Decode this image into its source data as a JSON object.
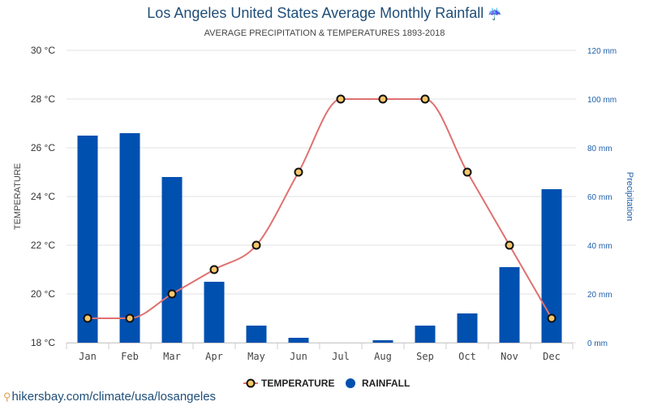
{
  "header": {
    "title": "Los Angeles United States Average Monthly Rainfall",
    "title_icon": "umbrella-rain-icon",
    "title_icon_glyph": "☔",
    "subtitle": "AVERAGE PRECIPITATION & TEMPERATURES 1893-2018"
  },
  "source": {
    "icon": "location-pin-icon",
    "text": "hikersbay.com/climate/usa/losangeles"
  },
  "colors": {
    "bar": "#0050b0",
    "line": "#e07070",
    "marker_fill": "#f5c76a",
    "marker_stroke": "#111111",
    "grid": "#e2e2e2",
    "right_axis": "#1f5fa8"
  },
  "chart_data": {
    "type": "bar+line",
    "title": "Los Angeles United States Average Monthly Rainfall",
    "subtitle": "AVERAGE PRECIPITATION & TEMPERATURES 1893-2018",
    "categories": [
      "Jan",
      "Feb",
      "Mar",
      "Apr",
      "May",
      "Jun",
      "Jul",
      "Aug",
      "Sep",
      "Oct",
      "Nov",
      "Dec"
    ],
    "series": [
      {
        "name": "RAINFALL",
        "type": "bar",
        "axis": "right",
        "unit": "mm",
        "values": [
          85,
          86,
          68,
          25,
          7,
          2,
          0,
          1,
          7,
          12,
          31,
          63
        ]
      },
      {
        "name": "TEMPERATURE",
        "type": "line",
        "axis": "left",
        "unit": "°C",
        "values": [
          19,
          19,
          20,
          21,
          22,
          25,
          28,
          28,
          28,
          25,
          22,
          19
        ]
      }
    ],
    "left_axis": {
      "label": "TEMPERATURE",
      "range": [
        18,
        30
      ],
      "ticks": [
        "18 °C",
        "20 °C",
        "22 °C",
        "24 °C",
        "26 °C",
        "28 °C",
        "30 °C"
      ],
      "tick_values": [
        18,
        20,
        22,
        24,
        26,
        28,
        30
      ]
    },
    "right_axis": {
      "label": "Precipitation",
      "range": [
        0,
        120
      ],
      "ticks": [
        "0 mm",
        "20 mm",
        "40 mm",
        "60 mm",
        "80 mm",
        "100 mm",
        "120 mm"
      ],
      "tick_values": [
        0,
        20,
        40,
        60,
        80,
        100,
        120
      ]
    },
    "grid": true,
    "legend": {
      "position": "bottom-center",
      "items": [
        {
          "label": "TEMPERATURE",
          "marker": "line-circle"
        },
        {
          "label": "RAINFALL",
          "marker": "circle"
        }
      ]
    }
  }
}
